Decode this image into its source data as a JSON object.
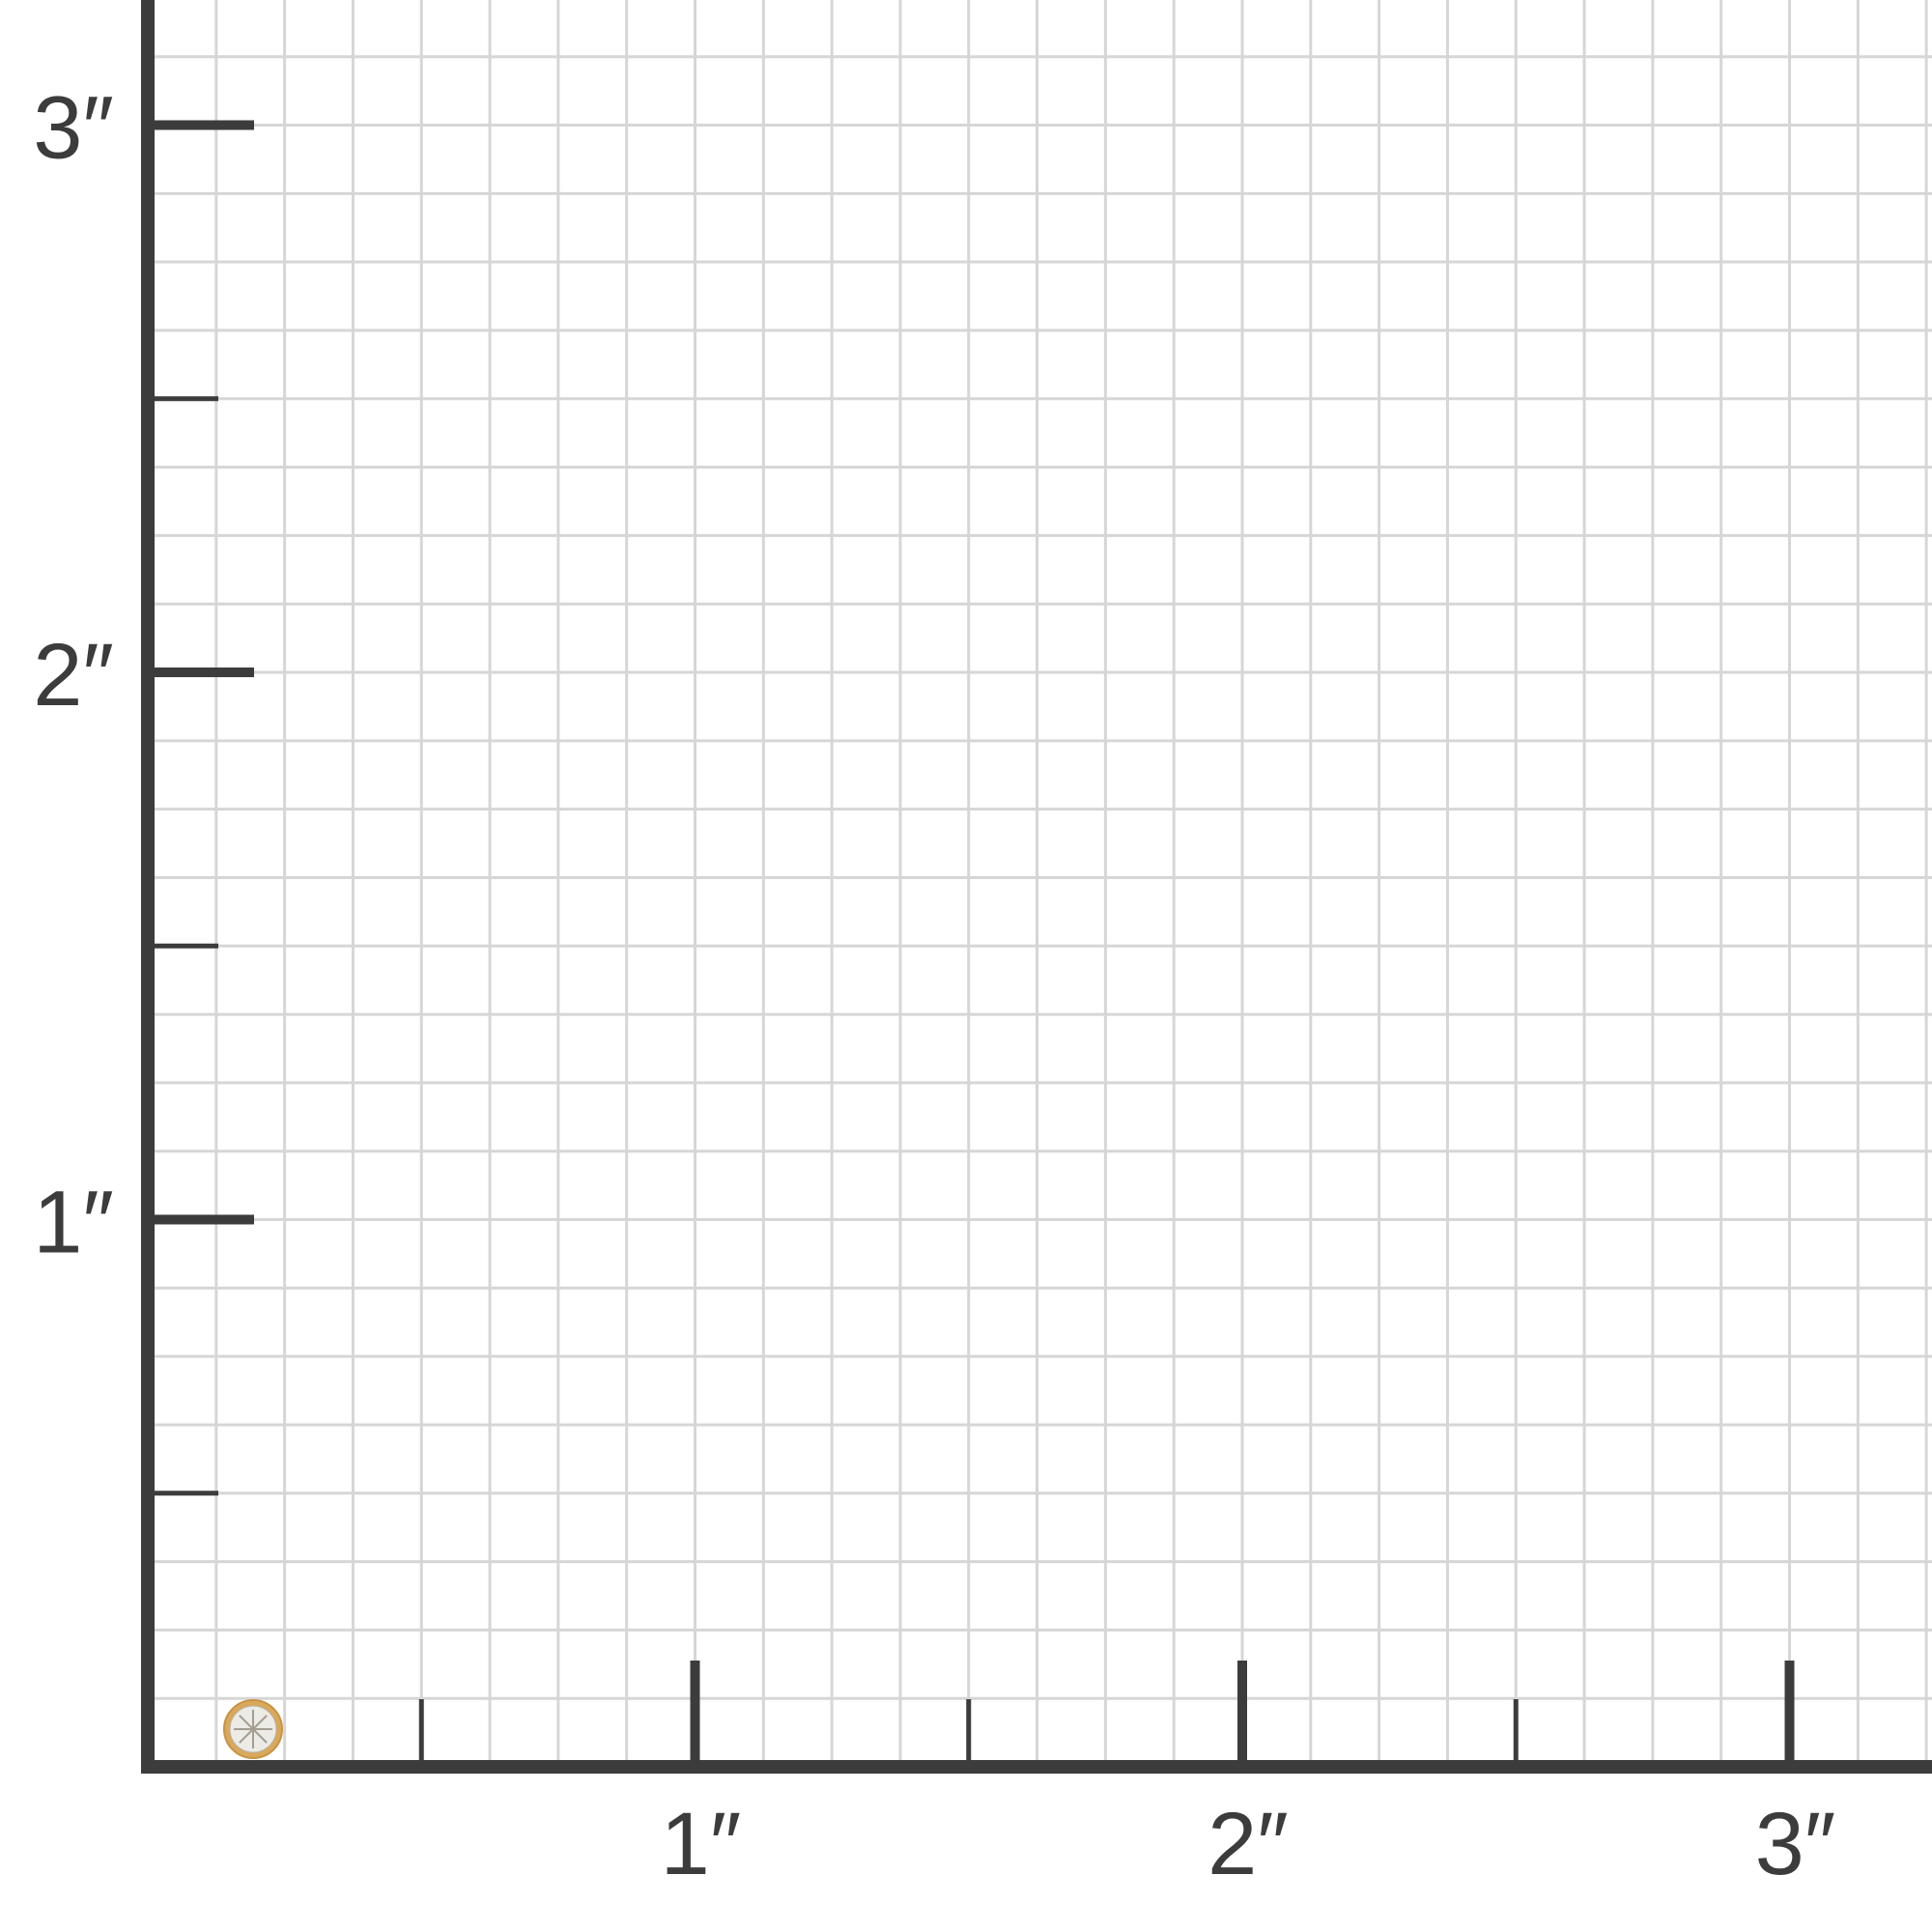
{
  "chart_data": {
    "type": "size-grid",
    "unit": "inch",
    "x_ticks": [
      "1″",
      "2″",
      "3″"
    ],
    "y_ticks": [
      "1″",
      "2″",
      "3″"
    ],
    "grid_subdivisions_per_inch": 8,
    "grid": true,
    "item": {
      "name": "bezel-diamond-stud",
      "diameter_in": 0.125,
      "x_in": 0.2,
      "y_in": 0.07
    }
  },
  "colors": {
    "axis": "#3c3c3c",
    "grid": "#d6d6d6",
    "gold": "#d9a85a",
    "stone": "#ecebe6"
  }
}
